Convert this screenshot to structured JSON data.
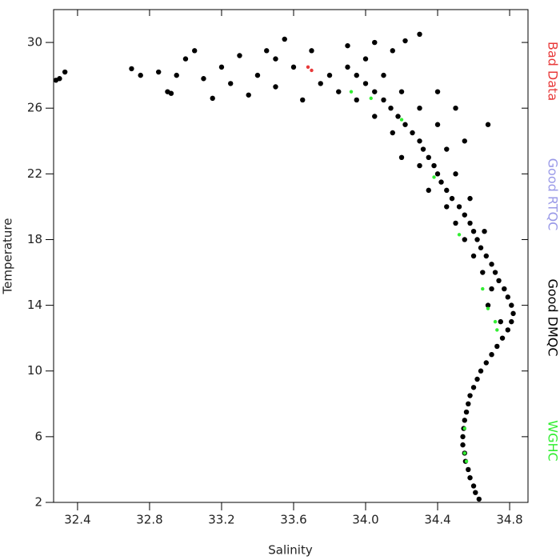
{
  "chart_data": {
    "type": "scatter",
    "x_label": "Salinity",
    "y_label": "Temperature",
    "xlim": [
      32.267,
      34.902
    ],
    "ylim": [
      2,
      32
    ],
    "xticks": [
      32.4,
      32.8,
      33.2,
      33.6,
      {
        "value": 34,
        "label": "34.0"
      },
      34.4,
      34.8
    ],
    "yticks": [
      2,
      6,
      10,
      14,
      18,
      22,
      26,
      30
    ],
    "legend": "right",
    "series": [
      {
        "name": "Bad Data",
        "color": "#e83a3a",
        "x": [
          33.68,
          33.7
        ],
        "values": [
          28.5,
          28.3
        ]
      },
      {
        "name": "Good RTQC",
        "color": "#9a9ae8",
        "x": [],
        "values": []
      },
      {
        "name": "Good DMQC",
        "color": "#000000",
        "x": [
          34.63,
          34.61,
          34.6,
          34.58,
          34.57,
          34.555,
          34.55,
          34.54,
          34.54,
          34.545,
          34.55,
          34.56,
          34.57,
          34.58,
          34.6,
          34.62,
          34.64,
          34.67,
          34.7,
          34.73,
          34.76,
          34.79,
          34.81,
          34.82,
          34.81,
          34.79,
          34.77,
          34.74,
          34.72,
          34.7,
          34.67,
          34.64,
          34.62,
          34.6,
          34.58,
          34.55,
          34.52,
          34.48,
          34.45,
          34.42,
          34.4,
          34.38,
          34.35,
          34.32,
          34.3,
          34.26,
          34.22,
          34.18,
          34.14,
          34.1,
          34.05,
          34.0,
          33.95,
          33.9,
          34.7,
          34.68,
          34.75,
          34.65,
          34.6,
          34.55,
          34.5,
          34.66,
          34.45,
          34.58,
          34.35,
          34.5,
          34.3,
          34.45,
          34.2,
          34.4,
          34.15,
          34.3,
          34.05,
          34.2,
          33.95,
          34.1,
          33.85,
          34.0,
          33.8,
          33.7,
          33.6,
          33.5,
          33.4,
          33.3,
          33.2,
          33.1,
          33.0,
          32.95,
          32.9,
          32.85,
          32.75,
          32.7,
          33.05,
          33.25,
          33.35,
          33.5,
          33.65,
          33.75,
          33.9,
          34.05,
          34.3,
          34.22,
          34.15,
          33.55,
          33.45,
          34.68,
          32.3,
          32.33,
          32.28,
          33.15,
          32.92,
          34.4,
          34.5,
          34.55
        ],
        "values": [
          2.2,
          2.6,
          3,
          3.5,
          4,
          4.5,
          5,
          5.5,
          6,
          6.5,
          7,
          7.5,
          8,
          8.5,
          9,
          9.5,
          10,
          10.5,
          11,
          11.5,
          12,
          12.5,
          13,
          13.5,
          14,
          14.5,
          15,
          15.5,
          16,
          16.5,
          17,
          17.5,
          18,
          18.5,
          19,
          19.5,
          20,
          20.5,
          21,
          21.5,
          22,
          22.5,
          23,
          23.5,
          24,
          24.5,
          25,
          25.5,
          26,
          26.5,
          27,
          27.5,
          28,
          28.5,
          15,
          14,
          13,
          16,
          17,
          18,
          19,
          18.5,
          20,
          20.5,
          21,
          22,
          22.5,
          23.5,
          23,
          25,
          24.5,
          26,
          25.5,
          27,
          26.5,
          28,
          27,
          29,
          28,
          29.5,
          28.5,
          29,
          28,
          29.2,
          28.5,
          27.8,
          29,
          28,
          27,
          28.2,
          28,
          28.4,
          29.5,
          27.5,
          26.8,
          27.3,
          26.5,
          27.5,
          29.8,
          30,
          30.5,
          30.1,
          29.5,
          30.2,
          29.5,
          25,
          27.8,
          28.2,
          27.7,
          26.6,
          26.9,
          27,
          26,
          24
        ]
      },
      {
        "name": "WGHC",
        "color": "#33ee33",
        "x": [
          33.92,
          34.03,
          34.2,
          34.38,
          34.52,
          34.65,
          34.68,
          34.72,
          34.73,
          34.55,
          34.55,
          34.56
        ],
        "values": [
          27,
          26.6,
          25.3,
          21.8,
          18.3,
          15,
          13.8,
          13,
          12.5,
          6.5,
          5,
          4.5
        ]
      }
    ]
  }
}
